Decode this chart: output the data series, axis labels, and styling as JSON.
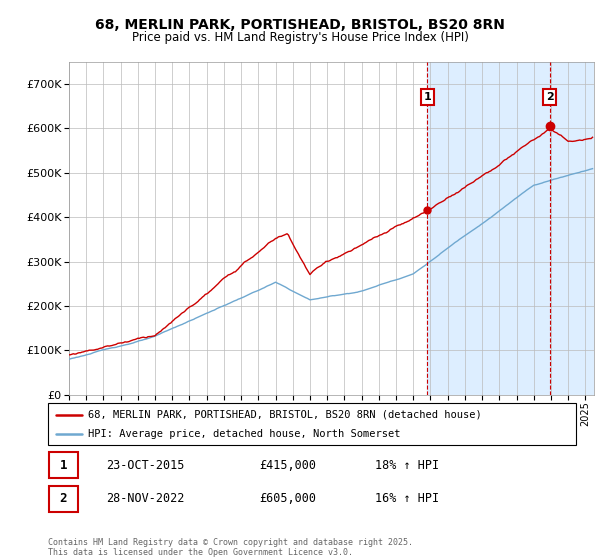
{
  "title": "68, MERLIN PARK, PORTISHEAD, BRISTOL, BS20 8RN",
  "subtitle": "Price paid vs. HM Land Registry's House Price Index (HPI)",
  "ylim": [
    0,
    750000
  ],
  "xlim_start": 1995,
  "xlim_end": 2025.5,
  "sale1_year": 2015.82,
  "sale1_price": 415000,
  "sale2_year": 2022.92,
  "sale2_price": 605000,
  "red_color": "#cc0000",
  "blue_color": "#6fa8d0",
  "light_blue_bg": "#ddeeff",
  "grid_color": "#bbbbbb",
  "annotation_box_color": "#cc0000",
  "legend_label1": "68, MERLIN PARK, PORTISHEAD, BRISTOL, BS20 8RN (detached house)",
  "legend_label2": "HPI: Average price, detached house, North Somerset",
  "footer": "Contains HM Land Registry data © Crown copyright and database right 2025.\nThis data is licensed under the Open Government Licence v3.0.",
  "table_row1": [
    "1",
    "23-OCT-2015",
    "£415,000",
    "18% ↑ HPI"
  ],
  "table_row2": [
    "2",
    "28-NOV-2022",
    "£605,000",
    "16% ↑ HPI"
  ]
}
